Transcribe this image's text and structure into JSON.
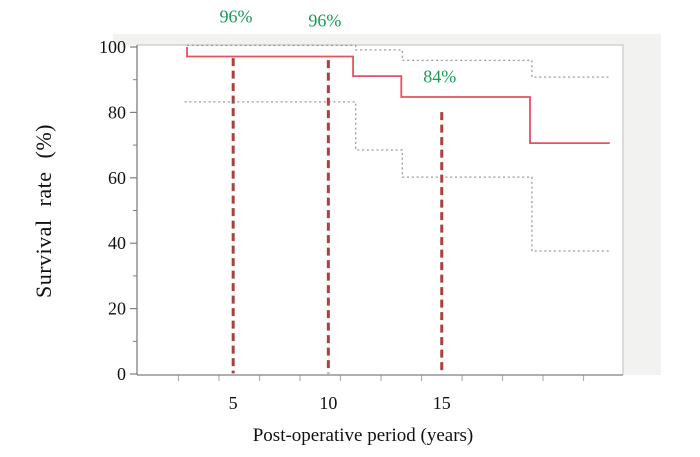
{
  "chart_data": {
    "type": "line",
    "subtype": "kaplan-meier-step-curve",
    "title": "",
    "xlabel": "Post-operative period (years)",
    "ylabel": "Survival rate (%)",
    "xlim": [
      0,
      24
    ],
    "ylim": [
      0,
      100
    ],
    "grid": false,
    "legend": "none",
    "y_ticks": {
      "major": [
        0,
        20,
        40,
        60,
        80,
        100
      ],
      "minor": [
        10,
        30,
        50,
        70,
        90
      ]
    },
    "x_ticks": {
      "minor_years": [
        2,
        4,
        6,
        8,
        10,
        12,
        14,
        16,
        18,
        20,
        22
      ],
      "labeled": [
        {
          "label": "5",
          "t": 4.7
        },
        {
          "label": "10",
          "t": 9.4
        },
        {
          "label": "15",
          "t": 15.0
        }
      ]
    },
    "series": [
      {
        "name": "Survival rate",
        "style": "solid-red",
        "points": [
          [
            2.42,
            100
          ],
          [
            2.42,
            97.1
          ],
          [
            10.62,
            91.1
          ],
          [
            13.0,
            84.7
          ],
          [
            19.36,
            70.6
          ],
          [
            23.3,
            70.6
          ]
        ]
      },
      {
        "name": "Confidence interval upper",
        "style": "dotted-gray",
        "points": [
          [
            2.42,
            100.5
          ],
          [
            10.75,
            99.1
          ],
          [
            13.05,
            95.9
          ],
          [
            19.45,
            90.8
          ],
          [
            23.3,
            90.8
          ]
        ]
      },
      {
        "name": "Confidence interval lower",
        "style": "dotted-gray",
        "points": [
          [
            2.3,
            83.2
          ],
          [
            10.75,
            68.5
          ],
          [
            13.05,
            60.2
          ],
          [
            19.45,
            37.6
          ],
          [
            23.3,
            37.6
          ]
        ]
      }
    ],
    "thresholds": [
      {
        "label": "96%",
        "t": 4.7,
        "p_from": 96.6,
        "p_to": 0.2,
        "label_t": 4.84,
        "label_p": 109.2
      },
      {
        "label": "96%",
        "t": 9.4,
        "p_from": 96.0,
        "p_to": 0.2,
        "label_t": 9.23,
        "label_p": 108.0
      },
      {
        "label": "84%",
        "t": 15.0,
        "p_from": 80.1,
        "p_to": 1.2,
        "label_t": 14.9,
        "label_p": 90.8
      }
    ]
  },
  "colors": {
    "survival_line": "#e4525f",
    "threshold_dash": "#a8423d",
    "annotation_green": "#169c53",
    "ci_dotted": "#999999",
    "axis": "#7f7f7f",
    "tick": "#b0b0b0",
    "plot_border": "#c9c9c9",
    "panel_fill": "#f2f2f1",
    "text": "#111111"
  }
}
